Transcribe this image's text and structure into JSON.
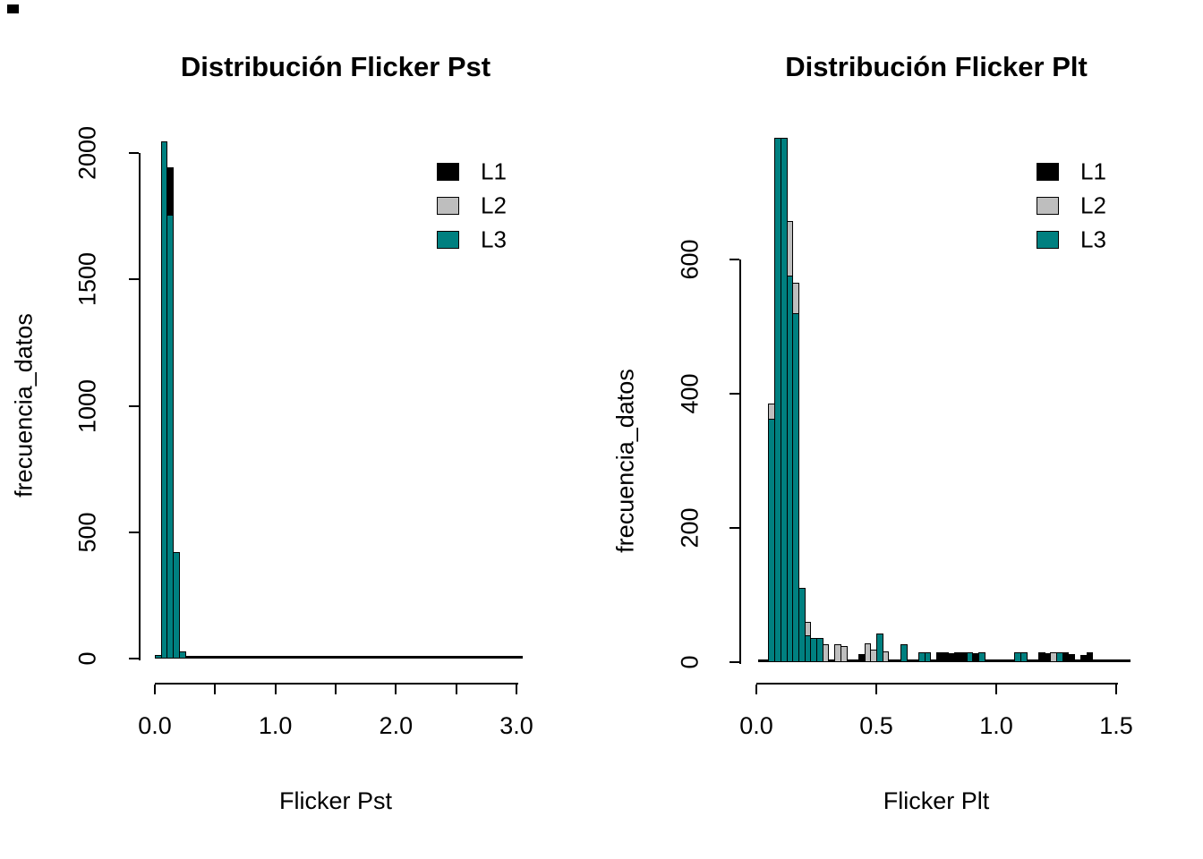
{
  "figure": {
    "background": "#ffffff",
    "series_colors": {
      "L1": "#000000",
      "L2": "#BEBEBE",
      "L3": "#008080"
    }
  },
  "chart_data": [
    {
      "type": "bar",
      "subtype": "overlaid-histograms",
      "title": "Distribución Flicker Pst",
      "xlabel": "Flicker Pst",
      "ylabel": "frecuencia_datos",
      "xlim": [
        0.0,
        3.1
      ],
      "ylim": [
        0,
        2050
      ],
      "bin_width": 0.05,
      "grid": false,
      "legend": {
        "position": "top-right-inset",
        "entries": [
          {
            "label": "L1",
            "color": "#000000"
          },
          {
            "label": "L2",
            "color": "#BEBEBE"
          },
          {
            "label": "L3",
            "color": "#008080"
          }
        ]
      },
      "x_ticks": [
        {
          "v": 0.0,
          "label": "0.0"
        },
        {
          "v": 0.5,
          "label": ""
        },
        {
          "v": 1.0,
          "label": "1.0"
        },
        {
          "v": 1.5,
          "label": ""
        },
        {
          "v": 2.0,
          "label": "2.0"
        },
        {
          "v": 2.5,
          "label": ""
        },
        {
          "v": 3.0,
          "label": "3.0"
        }
      ],
      "y_ticks": [
        {
          "v": 0,
          "label": "0"
        },
        {
          "v": 500,
          "label": "500"
        },
        {
          "v": 1000,
          "label": "1000"
        },
        {
          "v": 1500,
          "label": "1500"
        },
        {
          "v": 2000,
          "label": "2000"
        }
      ],
      "bars": [
        {
          "x": 0.0,
          "segments": [
            {
              "series": "L3",
              "count": 15
            }
          ]
        },
        {
          "x": 0.05,
          "segments": [
            {
              "series": "L3",
              "count": 2045
            }
          ]
        },
        {
          "x": 0.1,
          "segments": [
            {
              "series": "L1",
              "count": 1943
            },
            {
              "series": "L3",
              "count": 1755
            }
          ]
        },
        {
          "x": 0.15,
          "segments": [
            {
              "series": "L3",
              "count": 420
            }
          ]
        },
        {
          "x": 0.2,
          "segments": [
            {
              "series": "L3",
              "count": 30
            }
          ]
        },
        {
          "x": 0.25,
          "segments": [
            {
              "series": "L1",
              "count": 12
            }
          ]
        },
        {
          "x": 0.3,
          "segments": [
            {
              "series": "L1",
              "count": 9
            }
          ]
        },
        {
          "x": 0.35,
          "segments": [
            {
              "series": "L1",
              "count": 8
            }
          ]
        },
        {
          "x": 0.4,
          "segments": [
            {
              "series": "L1",
              "count": 7
            }
          ]
        },
        {
          "x": 0.45,
          "segments": [
            {
              "series": "L1",
              "count": 6
            }
          ]
        },
        {
          "x": 0.5,
          "segments": [
            {
              "series": "L1",
              "count": 5
            }
          ]
        },
        {
          "x": 0.55,
          "segments": [
            {
              "series": "L1",
              "count": 5
            }
          ]
        },
        {
          "x": 0.6,
          "segments": [
            {
              "series": "L1",
              "count": 4
            }
          ]
        },
        {
          "x": 0.7,
          "segments": [
            {
              "series": "L1",
              "count": 4
            }
          ]
        },
        {
          "x": 0.75,
          "segments": [
            {
              "series": "L1",
              "count": 6
            }
          ]
        },
        {
          "x": 0.8,
          "segments": [
            {
              "series": "L1",
              "count": 5
            }
          ]
        }
      ]
    },
    {
      "type": "bar",
      "subtype": "overlaid-histograms",
      "title": "Distribución Flicker Plt",
      "xlabel": "Flicker Plt",
      "ylabel": "frecuencia_datos",
      "xlim": [
        0.0,
        1.55
      ],
      "ylim": [
        0,
        785
      ],
      "bin_width": 0.025,
      "grid": false,
      "legend": {
        "position": "top-right-inset",
        "entries": [
          {
            "label": "L1",
            "color": "#000000"
          },
          {
            "label": "L2",
            "color": "#BEBEBE"
          },
          {
            "label": "L3",
            "color": "#008080"
          }
        ]
      },
      "x_ticks": [
        {
          "v": 0.0,
          "label": "0.0"
        },
        {
          "v": 0.5,
          "label": "0.5"
        },
        {
          "v": 1.0,
          "label": "1.0"
        },
        {
          "v": 1.5,
          "label": "1.5"
        }
      ],
      "y_ticks": [
        {
          "v": 0,
          "label": "0"
        },
        {
          "v": 200,
          "label": "200"
        },
        {
          "v": 400,
          "label": "400"
        },
        {
          "v": 600,
          "label": "600"
        }
      ],
      "bars": [
        {
          "x": 0.05,
          "segments": [
            {
              "series": "L2",
              "count": 385
            },
            {
              "series": "L3",
              "count": 363
            }
          ]
        },
        {
          "x": 0.075,
          "segments": [
            {
              "series": "L3",
              "count": 781
            }
          ]
        },
        {
          "x": 0.1,
          "segments": [
            {
              "series": "L3",
              "count": 781
            }
          ]
        },
        {
          "x": 0.125,
          "segments": [
            {
              "series": "L2",
              "count": 657
            },
            {
              "series": "L3",
              "count": 576
            }
          ]
        },
        {
          "x": 0.15,
          "segments": [
            {
              "series": "L2",
              "count": 565
            },
            {
              "series": "L3",
              "count": 520
            }
          ]
        },
        {
          "x": 0.175,
          "segments": [
            {
              "series": "L3",
              "count": 110
            }
          ]
        },
        {
          "x": 0.2,
          "segments": [
            {
              "series": "L2",
              "count": 60
            },
            {
              "series": "L3",
              "count": 40
            }
          ]
        },
        {
          "x": 0.225,
          "segments": [
            {
              "series": "L3",
              "count": 36
            }
          ]
        },
        {
          "x": 0.25,
          "segments": [
            {
              "series": "L3",
              "count": 36
            }
          ]
        },
        {
          "x": 0.275,
          "segments": [
            {
              "series": "L2",
              "count": 26
            }
          ]
        },
        {
          "x": 0.325,
          "segments": [
            {
              "series": "L2",
              "count": 26
            }
          ]
        },
        {
          "x": 0.35,
          "segments": [
            {
              "series": "L2",
              "count": 24
            }
          ]
        },
        {
          "x": 0.425,
          "segments": [
            {
              "series": "L1",
              "count": 12
            }
          ]
        },
        {
          "x": 0.45,
          "segments": [
            {
              "series": "L2",
              "count": 28
            }
          ]
        },
        {
          "x": 0.475,
          "segments": [
            {
              "series": "L2",
              "count": 18
            }
          ]
        },
        {
          "x": 0.5,
          "segments": [
            {
              "series": "L3",
              "count": 43
            }
          ]
        },
        {
          "x": 0.525,
          "segments": [
            {
              "series": "L2",
              "count": 16
            }
          ]
        },
        {
          "x": 0.6,
          "segments": [
            {
              "series": "L3",
              "count": 26
            }
          ]
        },
        {
          "x": 0.675,
          "segments": [
            {
              "series": "L3",
              "count": 14
            }
          ]
        },
        {
          "x": 0.7,
          "segments": [
            {
              "series": "L3",
              "count": 15
            }
          ]
        },
        {
          "x": 0.75,
          "segments": [
            {
              "series": "L1",
              "count": 14
            }
          ]
        },
        {
          "x": 0.775,
          "segments": [
            {
              "series": "L1",
              "count": 15
            }
          ]
        },
        {
          "x": 0.8,
          "segments": [
            {
              "series": "L1",
              "count": 13
            }
          ]
        },
        {
          "x": 0.825,
          "segments": [
            {
              "series": "L1",
              "count": 14
            }
          ]
        },
        {
          "x": 0.85,
          "segments": [
            {
              "series": "L1",
              "count": 14
            }
          ]
        },
        {
          "x": 0.875,
          "segments": [
            {
              "series": "L3",
              "count": 15
            }
          ]
        },
        {
          "x": 0.9,
          "segments": [
            {
              "series": "L1",
              "count": 13
            }
          ]
        },
        {
          "x": 0.925,
          "segments": [
            {
              "series": "L3",
              "count": 15
            }
          ]
        },
        {
          "x": 1.075,
          "segments": [
            {
              "series": "L3",
              "count": 15
            }
          ]
        },
        {
          "x": 1.1,
          "segments": [
            {
              "series": "L3",
              "count": 15
            }
          ]
        },
        {
          "x": 1.175,
          "segments": [
            {
              "series": "L1",
              "count": 14
            }
          ]
        },
        {
          "x": 1.2,
          "segments": [
            {
              "series": "L1",
              "count": 13
            }
          ]
        },
        {
          "x": 1.225,
          "segments": [
            {
              "series": "L2",
              "count": 15
            }
          ]
        },
        {
          "x": 1.25,
          "segments": [
            {
              "series": "L3",
              "count": 15
            }
          ]
        },
        {
          "x": 1.275,
          "segments": [
            {
              "series": "L1",
              "count": 14
            }
          ]
        },
        {
          "x": 1.3,
          "segments": [
            {
              "series": "L1",
              "count": 12
            }
          ]
        },
        {
          "x": 1.35,
          "segments": [
            {
              "series": "L1",
              "count": 11
            }
          ]
        },
        {
          "x": 1.375,
          "segments": [
            {
              "series": "L1",
              "count": 14
            }
          ]
        }
      ]
    }
  ]
}
